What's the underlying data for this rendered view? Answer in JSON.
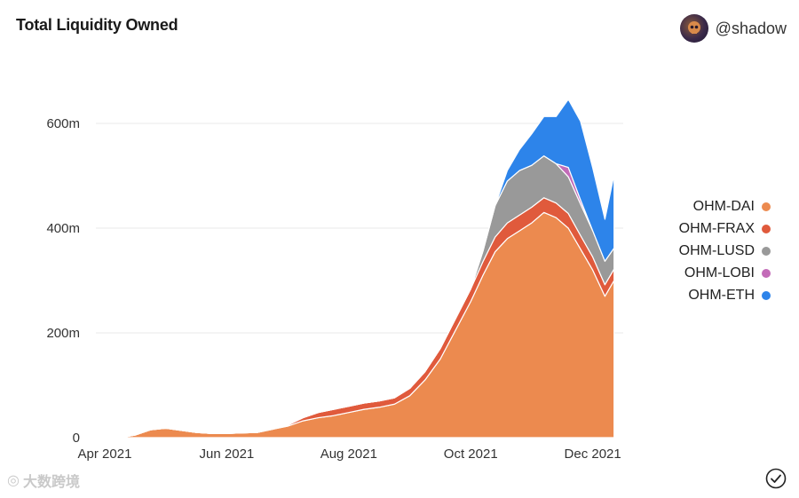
{
  "header": {
    "title": "Total Liquidity Owned",
    "author": "@shadow"
  },
  "watermark": "大数跨境",
  "chart_data": {
    "type": "area",
    "stacked": true,
    "title": "Total Liquidity Owned",
    "xlabel": "",
    "ylabel": "",
    "x_range": [
      0,
      8.5
    ],
    "ylim": [
      0,
      700
    ],
    "y_ticks": [
      {
        "value": 0,
        "label": "0"
      },
      {
        "value": 200,
        "label": "200m"
      },
      {
        "value": 400,
        "label": "400m"
      },
      {
        "value": 600,
        "label": "600m"
      }
    ],
    "x_ticks": [
      {
        "value": 0,
        "label": "Apr 2021"
      },
      {
        "value": 2,
        "label": "Jun 2021"
      },
      {
        "value": 4,
        "label": "Aug 2021"
      },
      {
        "value": 6,
        "label": "Oct 2021"
      },
      {
        "value": 8,
        "label": "Dec 2021"
      }
    ],
    "x": [
      0.25,
      0.5,
      0.75,
      1.0,
      1.25,
      1.5,
      1.75,
      2.0,
      2.25,
      2.5,
      2.75,
      3.0,
      3.25,
      3.5,
      3.75,
      4.0,
      4.25,
      4.5,
      4.75,
      5.0,
      5.25,
      5.5,
      5.75,
      6.0,
      6.2,
      6.4,
      6.6,
      6.8,
      7.0,
      7.2,
      7.4,
      7.6,
      7.8,
      8.0,
      8.2,
      8.35
    ],
    "series": [
      {
        "name": "OHM-DAI",
        "color": "#ec8a4f",
        "values": [
          0,
          5,
          15,
          18,
          14,
          10,
          8,
          8,
          9,
          10,
          16,
          22,
          32,
          38,
          42,
          48,
          54,
          58,
          64,
          80,
          110,
          150,
          205,
          260,
          310,
          355,
          380,
          395,
          410,
          430,
          420,
          400,
          360,
          320,
          270,
          300
        ]
      },
      {
        "name": "OHM-FRAX",
        "color": "#e05a3c",
        "values": [
          0,
          0,
          0,
          0,
          0,
          0,
          0,
          0,
          0,
          0,
          0,
          2,
          6,
          10,
          12,
          12,
          12,
          12,
          12,
          14,
          16,
          20,
          22,
          24,
          26,
          28,
          30,
          30,
          30,
          28,
          28,
          28,
          26,
          25,
          22,
          22
        ]
      },
      {
        "name": "OHM-LUSD",
        "color": "#999999",
        "values": [
          0,
          0,
          0,
          0,
          0,
          0,
          0,
          0,
          0,
          0,
          0,
          0,
          0,
          0,
          0,
          0,
          0,
          0,
          0,
          0,
          0,
          0,
          0,
          0,
          20,
          60,
          80,
          85,
          80,
          80,
          75,
          70,
          60,
          50,
          45,
          40
        ]
      },
      {
        "name": "OHM-LOBI",
        "color": "#c36bb8",
        "values": [
          0,
          0,
          0,
          0,
          0,
          0,
          0,
          0,
          0,
          0,
          0,
          0,
          0,
          0,
          0,
          0,
          0,
          0,
          0,
          0,
          0,
          0,
          0,
          0,
          0,
          0,
          0,
          0,
          0,
          0,
          0,
          18,
          8,
          0,
          0,
          0
        ]
      },
      {
        "name": "OHM-ETH",
        "color": "#2d84ea",
        "values": [
          0,
          0,
          0,
          0,
          0,
          0,
          0,
          0,
          0,
          0,
          0,
          0,
          0,
          0,
          0,
          0,
          0,
          0,
          0,
          0,
          0,
          0,
          0,
          0,
          0,
          0,
          20,
          40,
          60,
          75,
          90,
          130,
          150,
          120,
          80,
          140
        ]
      }
    ]
  }
}
